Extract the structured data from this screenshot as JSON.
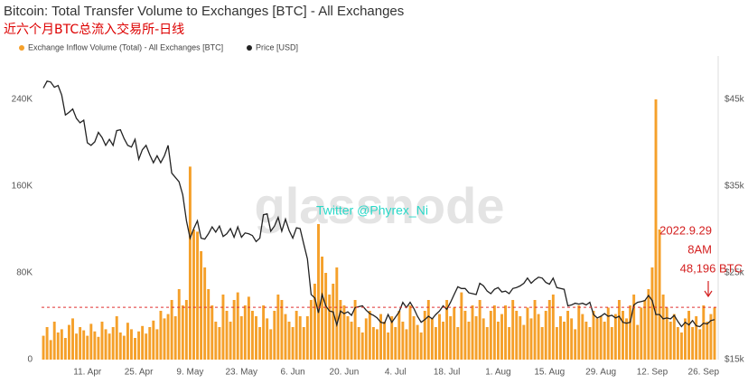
{
  "chart_data": {
    "type": "combo",
    "title": "Bitcoin: Total Transfer Volume to Exchanges [BTC] - All Exchanges",
    "subtitle": "近六个月BTC总流入交易所-日线",
    "watermark": "glassnode",
    "annotations": [
      "Twitter @Phyrex_Ni",
      "2022.9.29",
      "8AM"
    ],
    "threshold": {
      "value": 48196,
      "label": "48,196 BTC"
    },
    "legend": "top-left",
    "categories": [
      null,
      null,
      null,
      null,
      null,
      null,
      null,
      null,
      null,
      null,
      null,
      null,
      "11. Apr",
      null,
      null,
      null,
      null,
      null,
      null,
      null,
      null,
      null,
      null,
      null,
      null,
      null,
      "25. Apr",
      null,
      null,
      null,
      null,
      null,
      null,
      null,
      null,
      null,
      null,
      null,
      null,
      null,
      "9. May",
      null,
      null,
      null,
      null,
      null,
      null,
      null,
      null,
      null,
      null,
      null,
      null,
      null,
      "23. May",
      null,
      null,
      null,
      null,
      null,
      null,
      null,
      null,
      null,
      null,
      null,
      null,
      null,
      "6. Jun",
      null,
      null,
      null,
      null,
      null,
      null,
      null,
      null,
      null,
      null,
      null,
      null,
      null,
      "20. Jun",
      null,
      null,
      null,
      null,
      null,
      null,
      null,
      null,
      null,
      null,
      null,
      null,
      null,
      "4. Jul",
      null,
      null,
      null,
      null,
      null,
      null,
      null,
      null,
      null,
      null,
      null,
      null,
      null,
      "18. Jul",
      null,
      null,
      null,
      null,
      null,
      null,
      null,
      null,
      null,
      null,
      null,
      null,
      null,
      "1. Aug",
      null,
      null,
      null,
      null,
      null,
      null,
      null,
      null,
      null,
      null,
      null,
      null,
      null,
      "15. Aug",
      null,
      null,
      null,
      null,
      null,
      null,
      null,
      null,
      null,
      null,
      null,
      null,
      null,
      "29. Aug",
      null,
      null,
      null,
      null,
      null,
      null,
      null,
      null,
      null,
      null,
      null,
      null,
      null,
      "12. Sep",
      null,
      null,
      null,
      null,
      null,
      null,
      null,
      null,
      null,
      null,
      null,
      null,
      null,
      "26. Sep",
      null,
      null,
      null
    ],
    "series": [
      {
        "name": "Exchange Inflow Volume (Total) - All Exchanges [BTC]",
        "type": "bar",
        "color": "#f5a02a",
        "values": [
          22000,
          30000,
          18000,
          35000,
          25000,
          28000,
          20000,
          32000,
          38000,
          24000,
          30000,
          27000,
          22000,
          33000,
          26000,
          21000,
          35000,
          28000,
          24000,
          30000,
          40000,
          25000,
          22000,
          34000,
          28000,
          20000,
          26000,
          31000,
          24000,
          30000,
          36000,
          28000,
          45000,
          38000,
          42000,
          55000,
          40000,
          65000,
          50000,
          55000,
          178000,
          120000,
          118000,
          100000,
          85000,
          65000,
          50000,
          35000,
          30000,
          60000,
          45000,
          35000,
          55000,
          62000,
          40000,
          50000,
          58000,
          45000,
          40000,
          30000,
          50000,
          38000,
          28000,
          45000,
          60000,
          55000,
          42000,
          35000,
          30000,
          45000,
          40000,
          30000,
          40000,
          55000,
          70000,
          125000,
          95000,
          80000,
          60000,
          70000,
          85000,
          55000,
          50000,
          40000,
          35000,
          55000,
          30000,
          25000,
          38000,
          45000,
          30000,
          28000,
          42000,
          35000,
          25000,
          40000,
          30000,
          45000,
          35000,
          28000,
          50000,
          40000,
          32000,
          25000,
          45000,
          55000,
          38000,
          30000,
          42000,
          35000,
          55000,
          40000,
          48000,
          30000,
          62000,
          45000,
          35000,
          50000,
          40000,
          55000,
          38000,
          30000,
          45000,
          50000,
          35000,
          42000,
          50000,
          30000,
          55000,
          45000,
          40000,
          32000,
          48000,
          38000,
          55000,
          42000,
          30000,
          45000,
          55000,
          60000,
          30000,
          40000,
          35000,
          45000,
          38000,
          28000,
          50000,
          42000,
          35000,
          30000,
          45000,
          38000,
          40000,
          35000,
          48000,
          30000,
          42000,
          55000,
          45000,
          38000,
          50000,
          60000,
          32000,
          48000,
          55000,
          65000,
          85000,
          240000,
          120000,
          60000,
          48000,
          35000,
          42000,
          30000,
          25000,
          38000,
          45000,
          30000,
          40000,
          28000,
          50000,
          35000,
          42000,
          48000
        ]
      },
      {
        "name": "Price [USD]",
        "type": "line",
        "axis": "y2",
        "color": "#222222",
        "values": [
          46300,
          47100,
          47000,
          46400,
          46600,
          45500,
          43200,
          43500,
          43900,
          42800,
          42300,
          42600,
          40000,
          39700,
          40100,
          41200,
          40600,
          39700,
          40400,
          39700,
          41400,
          41500,
          40500,
          39700,
          39500,
          40400,
          38100,
          39200,
          39700,
          38600,
          37700,
          38500,
          37700,
          38500,
          39700,
          36500,
          36000,
          35500,
          34000,
          31000,
          29000,
          30100,
          31000,
          29000,
          28900,
          29500,
          30300,
          29700,
          30400,
          29200,
          29500,
          30100,
          29100,
          30300,
          29100,
          29600,
          29500,
          29300,
          28600,
          29000,
          31700,
          31800,
          29800,
          30400,
          31400,
          29800,
          31200,
          29900,
          29000,
          30200,
          30100,
          28300,
          26600,
          22500,
          22100,
          20400,
          22500,
          21200,
          20600,
          20500,
          19000,
          20600,
          20300,
          20500,
          20100,
          21000,
          21100,
          21200,
          20700,
          20300,
          20100,
          19800,
          19300,
          19200,
          20200,
          19300,
          19900,
          20500,
          21600,
          21000,
          21600,
          20900,
          20000,
          19300,
          19600,
          20000,
          19700,
          20200,
          20600,
          21200,
          20800,
          21600,
          22500,
          23400,
          23200,
          23200,
          22700,
          22600,
          22500,
          23800,
          23500,
          22900,
          22600,
          23100,
          23300,
          22800,
          22900,
          22600,
          23200,
          23300,
          23500,
          23800,
          24400,
          23800,
          24200,
          24500,
          24400,
          23900,
          23700,
          24400,
          23300,
          23200,
          23100,
          21200,
          21300,
          21500,
          21400,
          21500,
          21300,
          21600,
          20200,
          19800,
          20000,
          20300,
          20000,
          20100,
          19800,
          20000,
          19300,
          19200,
          19300,
          21300,
          21600,
          21700,
          21800,
          22400,
          21800,
          20200,
          20200,
          19700,
          19800,
          19700,
          20100,
          19400,
          18800,
          19300,
          19000,
          19500,
          18900,
          18800,
          19200,
          19100,
          19500,
          19600
        ]
      }
    ],
    "ylim": [
      0,
      280000
    ],
    "yticks": [
      0,
      {
        "value": 80000,
        "label": "80K"
      },
      {
        "value": 160000,
        "label": "160K"
      },
      {
        "value": 240000,
        "label": "240K"
      }
    ],
    "y2lim": [
      15000,
      50000
    ],
    "y2ticks": [
      {
        "value": 15000,
        "label": "$15k"
      },
      {
        "value": 25000,
        "label": "$25k"
      },
      {
        "value": 35000,
        "label": "$35k"
      },
      {
        "value": 45000,
        "label": "$45k"
      }
    ]
  }
}
